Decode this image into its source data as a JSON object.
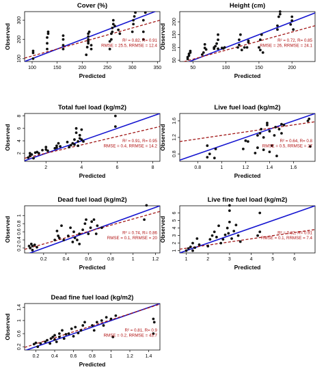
{
  "chart_data": [
    {
      "type": "scatter",
      "title": "Cover (%)",
      "xlabel": "Predicted",
      "ylabel": "Observed",
      "xlim": [
        85,
        355
      ],
      "ylim": [
        85,
        345
      ],
      "xticks": [
        100,
        150,
        200,
        250,
        300,
        350
      ],
      "yticks": [
        100,
        200,
        300
      ],
      "points": [
        [
          102,
          100
        ],
        [
          102,
          130
        ],
        [
          102,
          140
        ],
        [
          130,
          150
        ],
        [
          130,
          180
        ],
        [
          130,
          210
        ],
        [
          132,
          230
        ],
        [
          132,
          240
        ],
        [
          162,
          150
        ],
        [
          162,
          170
        ],
        [
          162,
          200
        ],
        [
          162,
          220
        ],
        [
          208,
          120
        ],
        [
          210,
          160
        ],
        [
          212,
          180
        ],
        [
          212,
          190
        ],
        [
          212,
          200
        ],
        [
          212,
          215
        ],
        [
          212,
          230
        ],
        [
          214,
          240
        ],
        [
          218,
          150
        ],
        [
          218,
          170
        ],
        [
          255,
          150
        ],
        [
          255,
          190
        ],
        [
          258,
          200
        ],
        [
          258,
          230
        ],
        [
          260,
          240
        ],
        [
          260,
          260
        ],
        [
          262,
          280
        ],
        [
          262,
          300
        ],
        [
          265,
          270
        ],
        [
          272,
          250
        ],
        [
          275,
          230
        ],
        [
          300,
          240
        ],
        [
          302,
          280
        ],
        [
          302,
          300
        ],
        [
          304,
          320
        ],
        [
          306,
          340
        ],
        [
          322,
          200
        ],
        [
          322,
          240
        ],
        [
          322,
          300
        ],
        [
          326,
          340
        ]
      ],
      "fit": [
        [
          85,
          85
        ],
        [
          355,
          355
        ]
      ],
      "trend": [
        [
          85,
          103
        ],
        [
          355,
          300
        ]
      ],
      "stats": [
        "R² = 0.82, R= 0.91",
        "RMSE = 25.5, RRMSE = 12.4"
      ]
    },
    {
      "type": "scatter",
      "title": "Height (cm)",
      "xlabel": "Predicted",
      "ylabel": "Observed",
      "xlim": [
        30,
        235
      ],
      "ylim": [
        45,
        240
      ],
      "xticks": [
        50,
        100,
        150,
        200
      ],
      "yticks": [
        50,
        100,
        150,
        200
      ],
      "points": [
        [
          42,
          55
        ],
        [
          42,
          62
        ],
        [
          44,
          68
        ],
        [
          44,
          75
        ],
        [
          46,
          80
        ],
        [
          46,
          86
        ],
        [
          64,
          72
        ],
        [
          66,
          80
        ],
        [
          68,
          98
        ],
        [
          68,
          112
        ],
        [
          70,
          92
        ],
        [
          82,
          95
        ],
        [
          82,
          100
        ],
        [
          84,
          105
        ],
        [
          86,
          115
        ],
        [
          88,
          95
        ],
        [
          88,
          130
        ],
        [
          88,
          150
        ],
        [
          94,
          98
        ],
        [
          96,
          96
        ],
        [
          98,
          100
        ],
        [
          118,
          100
        ],
        [
          120,
          110
        ],
        [
          120,
          130
        ],
        [
          122,
          150
        ],
        [
          124,
          90
        ],
        [
          128,
          100
        ],
        [
          132,
          100
        ],
        [
          134,
          120
        ],
        [
          134,
          126
        ],
        [
          150,
          100
        ],
        [
          152,
          90
        ],
        [
          152,
          130
        ],
        [
          154,
          150
        ],
        [
          156,
          80
        ],
        [
          178,
          170
        ],
        [
          178,
          185
        ],
        [
          180,
          220
        ],
        [
          182,
          230
        ],
        [
          182,
          240
        ],
        [
          198,
          190
        ],
        [
          200,
          205
        ],
        [
          200,
          220
        ],
        [
          202,
          170
        ]
      ],
      "fit": [
        [
          30,
          30
        ],
        [
          235,
          235
        ]
      ],
      "trend": [
        [
          30,
          40
        ],
        [
          235,
          185
        ]
      ],
      "stats": [
        "R² = 0.72, R= 0.85",
        "RMSE = 26, RRMSE = 24.1"
      ]
    },
    {
      "type": "scatter",
      "title": "Total fuel load (kg/m2)",
      "xlabel": "Predicted",
      "ylabel": "Observed",
      "xlim": [
        0.8,
        8.4
      ],
      "ylim": [
        0.7,
        8.4
      ],
      "xticks": [
        2,
        4,
        6,
        8
      ],
      "yticks": [
        2,
        4,
        6,
        8
      ],
      "points": [
        [
          1.0,
          1.3
        ],
        [
          1.1,
          1.6
        ],
        [
          1.1,
          2.0
        ],
        [
          1.2,
          1.8
        ],
        [
          1.3,
          1.2
        ],
        [
          1.4,
          2.1
        ],
        [
          1.5,
          2.2
        ],
        [
          1.6,
          2.0
        ],
        [
          1.8,
          2.5
        ],
        [
          2.0,
          2.6
        ],
        [
          2.0,
          3.0
        ],
        [
          2.1,
          2.4
        ],
        [
          2.5,
          2.8
        ],
        [
          2.6,
          3.2
        ],
        [
          2.6,
          2.9
        ],
        [
          2.7,
          3.6
        ],
        [
          2.8,
          3.1
        ],
        [
          3.2,
          3.8
        ],
        [
          3.3,
          3.0
        ],
        [
          3.4,
          3.3
        ],
        [
          3.5,
          3.6
        ],
        [
          3.6,
          3.4
        ],
        [
          3.6,
          4.2
        ],
        [
          3.7,
          5.3
        ],
        [
          3.7,
          6.0
        ],
        [
          3.8,
          3.2
        ],
        [
          3.8,
          3.9
        ],
        [
          3.9,
          4.4
        ],
        [
          3.9,
          4.9
        ],
        [
          4.0,
          5.8
        ],
        [
          4.0,
          4.2
        ],
        [
          4.1,
          3.9
        ],
        [
          5.9,
          6.3
        ],
        [
          5.9,
          8.0
        ]
      ],
      "fit": [
        [
          0.8,
          0.8
        ],
        [
          8.4,
          8.4
        ]
      ],
      "trend": [
        [
          0.8,
          1.2
        ],
        [
          8.4,
          6.3
        ]
      ],
      "stats": [
        "R² = 0.91, R= 0.95",
        "RMSE = 0.4, RRMSE = 14.2"
      ]
    },
    {
      "type": "scatter",
      "title": "Live fuel load (kg/m2)",
      "xlabel": "Predicted",
      "ylabel": "Observed",
      "xlim": [
        0.65,
        1.78
      ],
      "ylim": [
        0.62,
        1.78
      ],
      "xticks": [
        0.8,
        1.0,
        1.2,
        1.4,
        1.6
      ],
      "yticks": [
        0.8,
        1.2,
        1.6
      ],
      "points": [
        [
          0.88,
          0.72
        ],
        [
          0.88,
          1.0
        ],
        [
          0.9,
          0.8
        ],
        [
          0.94,
          0.7
        ],
        [
          0.95,
          0.92
        ],
        [
          1.18,
          0.92
        ],
        [
          1.2,
          1.12
        ],
        [
          1.22,
          1.1
        ],
        [
          1.28,
          0.82
        ],
        [
          1.3,
          0.95
        ],
        [
          1.3,
          1.25
        ],
        [
          1.32,
          1.3
        ],
        [
          1.33,
          1.4
        ],
        [
          1.35,
          1.2
        ],
        [
          1.35,
          0.9
        ],
        [
          1.38,
          1.5
        ],
        [
          1.38,
          1.55
        ],
        [
          1.4,
          1.35
        ],
        [
          1.4,
          0.85
        ],
        [
          1.42,
          1.0
        ],
        [
          1.44,
          1.25
        ],
        [
          1.45,
          1.45
        ],
        [
          1.46,
          0.75
        ],
        [
          1.48,
          1.4
        ],
        [
          1.5,
          1.52
        ],
        [
          1.5,
          1.3
        ],
        [
          1.52,
          1.5
        ],
        [
          1.72,
          1.6
        ],
        [
          1.73,
          1.65
        ],
        [
          1.74,
          0.98
        ]
      ],
      "fit": [
        [
          0.65,
          0.65
        ],
        [
          1.78,
          1.78
        ]
      ],
      "trend": [
        [
          0.65,
          1.1
        ],
        [
          1.78,
          1.58
        ]
      ],
      "stats": [
        "R² = 0.64, R= 0.8",
        "RMSE = 0.5, RRMSE = 27"
      ]
    },
    {
      "type": "scatter",
      "title": "Dead fuel load (kg/m2)",
      "xlabel": "Predicted",
      "ylabel": "Observed",
      "xlim": [
        0.03,
        1.24
      ],
      "ylim": [
        0.08,
        1.24
      ],
      "xticks": [
        0.2,
        0.4,
        0.6,
        0.8,
        1.0,
        1.2
      ],
      "yticks": [
        0.2,
        0.4,
        0.6,
        0.8,
        1.0
      ],
      "points": [
        [
          0.07,
          0.25
        ],
        [
          0.08,
          0.2
        ],
        [
          0.09,
          0.3
        ],
        [
          0.1,
          0.15
        ],
        [
          0.1,
          0.25
        ],
        [
          0.12,
          0.28
        ],
        [
          0.14,
          0.22
        ],
        [
          0.3,
          0.4
        ],
        [
          0.32,
          0.62
        ],
        [
          0.33,
          0.5
        ],
        [
          0.34,
          0.45
        ],
        [
          0.36,
          0.75
        ],
        [
          0.38,
          0.4
        ],
        [
          0.42,
          0.5
        ],
        [
          0.44,
          0.7
        ],
        [
          0.46,
          0.35
        ],
        [
          0.47,
          0.6
        ],
        [
          0.48,
          0.45
        ],
        [
          0.5,
          0.4
        ],
        [
          0.52,
          0.3
        ],
        [
          0.52,
          0.55
        ],
        [
          0.55,
          0.65
        ],
        [
          0.57,
          0.8
        ],
        [
          0.58,
          0.9
        ],
        [
          0.6,
          0.55
        ],
        [
          0.62,
          0.7
        ],
        [
          0.63,
          0.85
        ],
        [
          0.65,
          0.9
        ],
        [
          0.67,
          0.55
        ],
        [
          0.68,
          0.75
        ],
        [
          0.72,
          0.7
        ],
        [
          1.1,
          0.9
        ],
        [
          1.12,
          1.25
        ]
      ],
      "fit": [
        [
          0.03,
          0.03
        ],
        [
          1.24,
          1.24
        ]
      ],
      "trend": [
        [
          0.03,
          0.17
        ],
        [
          1.24,
          1.1
        ]
      ],
      "stats": [
        "R² = 0.74, R= 0.86",
        "RMSE = 0.1, RRMSE = 20"
      ]
    },
    {
      "type": "scatter",
      "title": "Live fine fuel load (kg/m2)",
      "xlabel": "Predicted",
      "ylabel": "Observed",
      "xlim": [
        0.7,
        6.95
      ],
      "ylim": [
        0.7,
        6.95
      ],
      "xticks": [
        1,
        2,
        3,
        4,
        5,
        6
      ],
      "yticks": [
        1,
        2,
        3,
        4,
        5,
        6
      ],
      "points": [
        [
          1.0,
          1.0
        ],
        [
          1.1,
          1.3
        ],
        [
          1.2,
          1.5
        ],
        [
          1.3,
          1.0
        ],
        [
          1.3,
          2.0
        ],
        [
          1.4,
          1.4
        ],
        [
          1.5,
          2.6
        ],
        [
          1.6,
          1.8
        ],
        [
          2.0,
          1.6
        ],
        [
          2.1,
          2.5
        ],
        [
          2.2,
          3.0
        ],
        [
          2.3,
          3.5
        ],
        [
          2.4,
          2.8
        ],
        [
          2.5,
          4.3
        ],
        [
          2.6,
          2.0
        ],
        [
          2.7,
          2.5
        ],
        [
          2.8,
          3.1
        ],
        [
          2.9,
          4.0
        ],
        [
          2.95,
          3.3
        ],
        [
          3.0,
          7.0
        ],
        [
          3.0,
          4.8
        ],
        [
          3.0,
          6.3
        ],
        [
          3.1,
          2.6
        ],
        [
          3.2,
          3.6
        ],
        [
          3.3,
          4.4
        ],
        [
          3.4,
          3.0
        ],
        [
          3.5,
          2.2
        ],
        [
          4.3,
          3.0
        ],
        [
          4.4,
          3.5
        ],
        [
          4.4,
          6.0
        ]
      ],
      "fit": [
        [
          0.7,
          0.7
        ],
        [
          6.95,
          6.95
        ]
      ],
      "trend": [
        [
          0.7,
          1.2
        ],
        [
          6.95,
          3.8
        ]
      ],
      "stats": [
        "R² = 0.82, R= 0.91",
        "RMSE = 0.1, RRMSE = 7.4"
      ]
    },
    {
      "type": "scatter",
      "title": "Dead fine fuel load (kg/m2)",
      "xlabel": "Predicted",
      "ylabel": "Observed",
      "xlim": [
        0.08,
        1.52
      ],
      "ylim": [
        0.1,
        1.52
      ],
      "xticks": [
        0.2,
        0.4,
        0.6,
        0.8,
        1.0,
        1.2,
        1.4
      ],
      "yticks": [
        0.2,
        0.6,
        1.0,
        1.4
      ],
      "points": [
        [
          0.18,
          0.28
        ],
        [
          0.2,
          0.32
        ],
        [
          0.22,
          0.2
        ],
        [
          0.25,
          0.3
        ],
        [
          0.3,
          0.35
        ],
        [
          0.32,
          0.4
        ],
        [
          0.35,
          0.3
        ],
        [
          0.36,
          0.45
        ],
        [
          0.38,
          0.5
        ],
        [
          0.4,
          0.42
        ],
        [
          0.4,
          0.55
        ],
        [
          0.42,
          0.35
        ],
        [
          0.45,
          0.5
        ],
        [
          0.45,
          0.6
        ],
        [
          0.48,
          0.7
        ],
        [
          0.5,
          0.45
        ],
        [
          0.52,
          0.58
        ],
        [
          0.55,
          0.6
        ],
        [
          0.58,
          0.75
        ],
        [
          0.6,
          0.52
        ],
        [
          0.62,
          0.8
        ],
        [
          0.65,
          0.62
        ],
        [
          0.68,
          0.7
        ],
        [
          0.7,
          0.85
        ],
        [
          0.72,
          0.95
        ],
        [
          0.8,
          0.85
        ],
        [
          0.82,
          0.7
        ],
        [
          0.85,
          0.95
        ],
        [
          0.9,
          1.0
        ],
        [
          0.92,
          0.85
        ],
        [
          0.95,
          1.1
        ],
        [
          1.0,
          1.05
        ],
        [
          1.02,
          0.5
        ],
        [
          1.05,
          1.15
        ],
        [
          1.45,
          0.6
        ],
        [
          1.45,
          1.05
        ],
        [
          1.46,
          0.95
        ]
      ],
      "fit": [
        [
          0.08,
          0.08
        ],
        [
          1.52,
          1.52
        ]
      ],
      "trend": [
        [
          0.08,
          0.18
        ],
        [
          1.52,
          1.5
        ]
      ],
      "stats": [
        "R² = 0.81, R= 0.9",
        "RMSE = 0.2, RRMSE = 43.7"
      ]
    }
  ],
  "colors": {
    "points": "#111111",
    "fit_line": "#1515d0",
    "trend_line": "#a01515",
    "stats_text": "#b01010"
  }
}
